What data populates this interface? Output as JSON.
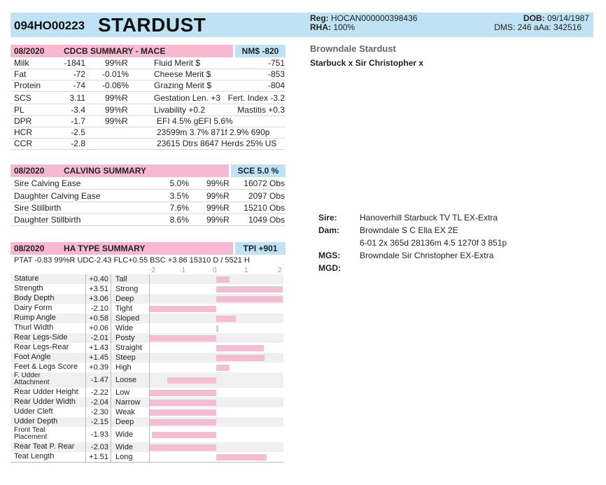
{
  "header": {
    "reg_number": "094HO00223",
    "name": "STARDUST",
    "reg_label": "Reg:",
    "reg_value": "HOCAN000000398436",
    "rha_label": "RHA:",
    "rha_value": "100%",
    "dob_label": "DOB:",
    "dob_value": "09/14/1987",
    "dms_text": "DMS: 246  aAa: 342516"
  },
  "cdcb": {
    "date": "08/2020",
    "title": "CDCB SUMMARY - MACE",
    "badge": "NM$ -820",
    "rows": [
      {
        "label": "Milk",
        "value": "-1841",
        "pct": "",
        "rel": "99%R",
        "merit_label": "Fluid Merit $",
        "merit_value": "-751"
      },
      {
        "label": "Fat",
        "value": "-72",
        "pct": "-0.01%",
        "rel": "",
        "merit_label": "Cheese Merit $",
        "merit_value": "-853"
      },
      {
        "label": "Protein",
        "value": "-74",
        "pct": "-0.06%",
        "rel": "",
        "merit_label": "Grazing Merit $",
        "merit_value": "-804"
      }
    ],
    "scs": {
      "label": "SCS",
      "value": "3.11",
      "rel": "99%R",
      "gest": "Gestation Len. +3",
      "fert": "Fert. Index -3.2"
    },
    "pl": {
      "label": "PL",
      "value": "-3.4",
      "rel": "99%R",
      "liv": "Livability  +0.2",
      "mast": "Mastitis  +0.3"
    },
    "dpr": {
      "label": "DPR",
      "value": "-1.7",
      "rel": "99%R",
      "efi": "EFI  4.5%  gEFI  5.6%"
    },
    "hcr": {
      "label": "HCR",
      "value": "-2.5",
      "prod": "23599m  3.7%  871f  2.9%  690p"
    },
    "ccr": {
      "label": "CCR",
      "value": "-2.8",
      "dtrs": "23615 Dtrs  8647 Herds  25% US"
    }
  },
  "calving": {
    "date": "08/2020",
    "title": "CALVING SUMMARY",
    "badge": "SCE 5.0 %",
    "rows": [
      {
        "label": "Sire Calving Ease",
        "value": "5.0%",
        "rel": "99%R",
        "obs": "16072 Obs"
      },
      {
        "label": "Daughter Calving Ease",
        "value": "3.5%",
        "rel": "99%R",
        "obs": "2097 Obs"
      },
      {
        "label": "Sire Stillbirth",
        "value": "7.6%",
        "rel": "99%R",
        "obs": "15210 Obs"
      },
      {
        "label": "Daughter Stillbirth",
        "value": "8.6%",
        "rel": "99%R",
        "obs": "1049 Obs"
      }
    ]
  },
  "type": {
    "date": "08/2020",
    "title": "HA TYPE SUMMARY",
    "badge": "TPI +901",
    "ptat_line": "PTAT -0.83  99%R  UDC-2.43  FLC+0.55  BSC +3.86  15310 D / 5521 H",
    "scale": [
      "-2",
      "-1",
      "0",
      "1",
      "2"
    ],
    "traits": [
      {
        "name": "Stature",
        "value": 0.4,
        "display": "+0.40",
        "desc": "Tall"
      },
      {
        "name": "Strength",
        "value": 3.51,
        "display": "+3.51",
        "desc": "Strong"
      },
      {
        "name": "Body Depth",
        "value": 3.06,
        "display": "+3.06",
        "desc": "Deep"
      },
      {
        "name": "Dairy Form",
        "value": -2.1,
        "display": "-2.10",
        "desc": "Tight"
      },
      {
        "name": "Rump Angle",
        "value": 0.58,
        "display": "+0.58",
        "desc": "Sloped"
      },
      {
        "name": "Thurl Width",
        "value": 0.06,
        "display": "+0.06",
        "desc": "Wide"
      },
      {
        "name": "Rear Legs-Side",
        "value": -2.01,
        "display": "-2.01",
        "desc": "Posty"
      },
      {
        "name": "Rear Legs-Rear",
        "value": 1.43,
        "display": "+1.43",
        "desc": "Straight"
      },
      {
        "name": "Foot Angle",
        "value": 1.45,
        "display": "+1.45",
        "desc": "Steep"
      },
      {
        "name": "Feet & Legs Score",
        "value": 0.39,
        "display": "+0.39",
        "desc": "High"
      },
      {
        "name": "F. Udder Attachment",
        "value": -1.47,
        "display": "-1.47",
        "desc": "Loose"
      },
      {
        "name": "Rear Udder Height",
        "value": -2.22,
        "display": "-2.22",
        "desc": "Low"
      },
      {
        "name": "Rear Udder Width",
        "value": -2.04,
        "display": "-2.04",
        "desc": "Narrow"
      },
      {
        "name": "Udder Cleft",
        "value": -2.3,
        "display": "-2.30",
        "desc": "Weak"
      },
      {
        "name": "Udder Depth",
        "value": -2.15,
        "display": "-2.15",
        "desc": "Deep"
      },
      {
        "name": "Front Teat Placement",
        "value": -1.93,
        "display": "-1.93",
        "desc": "Wide"
      },
      {
        "name": "Rear Teat P. Rear",
        "value": -2.03,
        "display": "-2.03",
        "desc": "Wide"
      },
      {
        "name": "Teat Length",
        "value": 1.51,
        "display": "+1.51",
        "desc": "Long"
      }
    ]
  },
  "side": {
    "full_name": "Browndale Stardust",
    "parentage": "Starbuck x Sir Christopher x"
  },
  "pedigree": {
    "sire_label": "Sire:",
    "sire": "Hanoverhill Starbuck TV TL EX-Extra",
    "dam_label": "Dam:",
    "dam": "Browndale S C Ella EX 2E",
    "dam_record": "6-01 2x 365d 28136m 4.5 1270f 3 851p",
    "mgs_label": "MGS:",
    "mgs": "Browndale Sir Christopher EX-Extra",
    "mgd_label": "MGD:"
  },
  "colors": {
    "pink": "#f7b8d2",
    "blue": "#bfe3f5",
    "bar": "#f5bcd3"
  }
}
